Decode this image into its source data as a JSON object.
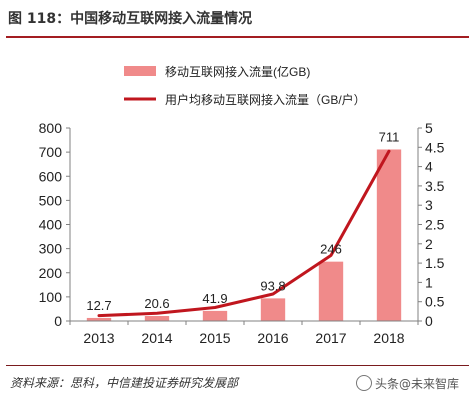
{
  "figure": {
    "title": "图 118：中国移动互联网接入流量情况",
    "source": "资料来源：思科，中信建投证券研究发展部",
    "watermark": "头条@未来智库"
  },
  "colors": {
    "bar": "#f08a8a",
    "line": "#c0161e",
    "title_rule": "#a31d21",
    "axis": "#808080"
  },
  "chart_data": {
    "type": "bar+line",
    "categories": [
      "2013",
      "2014",
      "2015",
      "2016",
      "2017",
      "2018"
    ],
    "series": [
      {
        "name": "移动互联网接入流量(亿GB)",
        "type": "bar",
        "axis": "left",
        "values": [
          12.7,
          20.6,
          41.9,
          93.8,
          246,
          711
        ],
        "labels": [
          "12.7",
          "20.6",
          "41.9",
          "93.8",
          "246",
          "711"
        ]
      },
      {
        "name": "用户均移动互联网接入流量（GB/户）",
        "type": "line",
        "axis": "right",
        "values": [
          0.14,
          0.2,
          0.35,
          0.7,
          1.7,
          4.4
        ]
      }
    ],
    "y_left": {
      "ylim": [
        0,
        800
      ],
      "ticks": [
        "0",
        "100",
        "200",
        "300",
        "400",
        "500",
        "600",
        "700",
        "800"
      ]
    },
    "y_right": {
      "ylim": [
        0,
        5
      ],
      "ticks": [
        "0",
        "0.5",
        "1",
        "1.5",
        "2",
        "2.5",
        "3",
        "3.5",
        "4",
        "4.5",
        "5"
      ]
    },
    "legend_position": "top-center",
    "grid": false
  }
}
